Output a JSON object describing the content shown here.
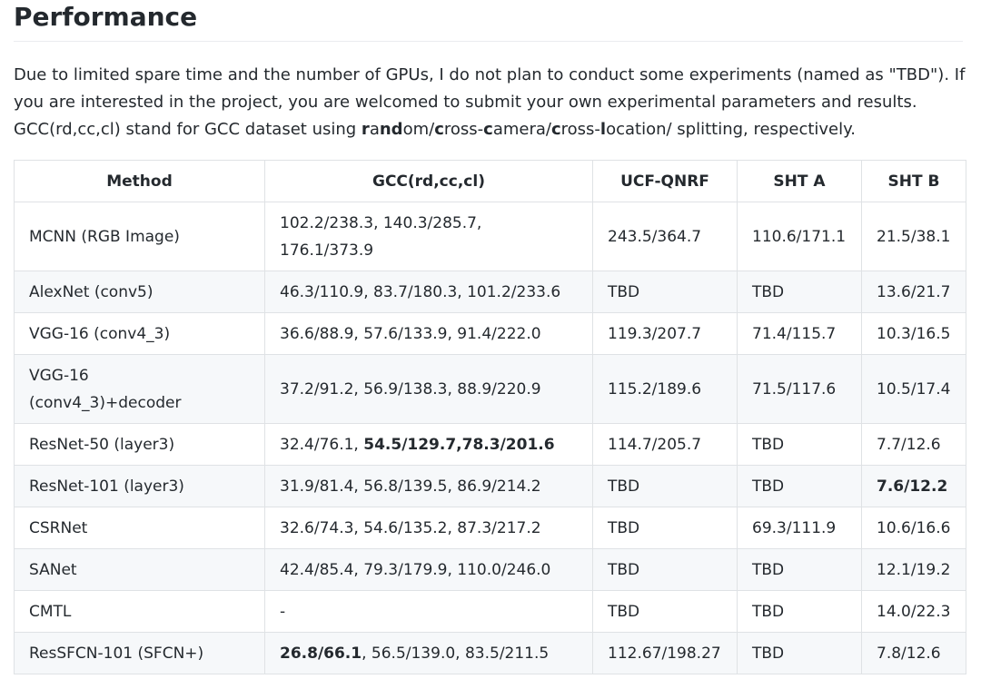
{
  "heading": "Performance",
  "intro": {
    "line1": "Due to limited spare time and the number of GPUs, I do not plan to conduct some experiments (named as \"TBD\"). If",
    "line2": "you are interested in the project, you are welcomed to submit your own experimental parameters and results.",
    "line3": [
      "GCC(rd,cc,cl) stand for GCC dataset using ",
      "r",
      "a",
      "n",
      "d",
      "om/",
      "c",
      "ross-",
      "c",
      "amera/",
      "c",
      "ross-",
      "l",
      "ocation/ splitting, respectively."
    ]
  },
  "table": {
    "headers": [
      "Method",
      "GCC(rd,cc,cl)",
      "UCF-QNRF",
      "SHT A",
      "SHT B"
    ],
    "rows": [
      {
        "method": "MCNN (RGB Image)",
        "gcc": [
          "102.2/238.3, 140.3/285.7,",
          "176.1/373.9"
        ],
        "ucf": "243.5/364.7",
        "shta": "110.6/171.1",
        "shtb": "21.5/38.1"
      },
      {
        "method": "AlexNet (conv5)",
        "gcc": [
          "46.3/110.9, 83.7/180.3, 101.2/233.6"
        ],
        "ucf": "TBD",
        "shta": "TBD",
        "shtb": "13.6/21.7"
      },
      {
        "method": "VGG-16 (conv4_3)",
        "gcc": [
          "36.6/88.9, 57.6/133.9, 91.4/222.0"
        ],
        "ucf": "119.3/207.7",
        "shta": "71.4/115.7",
        "shtb": "10.3/16.5"
      },
      {
        "method": [
          "VGG-16",
          "(conv4_3)+decoder"
        ],
        "gcc": [
          "37.2/91.2, 56.9/138.3, 88.9/220.9"
        ],
        "ucf": "115.2/189.6",
        "shta": "71.5/117.6",
        "shtb": "10.5/17.4"
      },
      {
        "method": "ResNet-50 (layer3)",
        "gcc_plain": "32.4/76.1, ",
        "gcc_bold": "54.5/129.7,78.3/201.6",
        "ucf": "114.7/205.7",
        "shta": "TBD",
        "shtb": "7.7/12.6"
      },
      {
        "method": "ResNet-101 (layer3)",
        "gcc": [
          "31.9/81.4, 56.8/139.5, 86.9/214.2"
        ],
        "ucf": "TBD",
        "shta": "TBD",
        "shtb_bold": "7.6/12.2"
      },
      {
        "method": "CSRNet",
        "gcc": [
          "32.6/74.3, 54.6/135.2, 87.3/217.2"
        ],
        "ucf": "TBD",
        "shta": "69.3/111.9",
        "shtb": "10.6/16.6"
      },
      {
        "method": "SANet",
        "gcc": [
          "42.4/85.4, 79.3/179.9, 110.0/246.0"
        ],
        "ucf": "TBD",
        "shta": "TBD",
        "shtb": "12.1/19.2"
      },
      {
        "method": "CMTL",
        "gcc": [
          "-"
        ],
        "ucf": "TBD",
        "shta": "TBD",
        "shtb": "14.0/22.3"
      },
      {
        "method": "ResSFCN-101 (SFCN+)",
        "gcc_bold_first": "26.8/66.1",
        "gcc_rest": ", 56.5/139.0, 83.5/211.5",
        "ucf": "112.67/198.27",
        "shta": "TBD",
        "shtb": "7.8/12.6"
      }
    ]
  }
}
